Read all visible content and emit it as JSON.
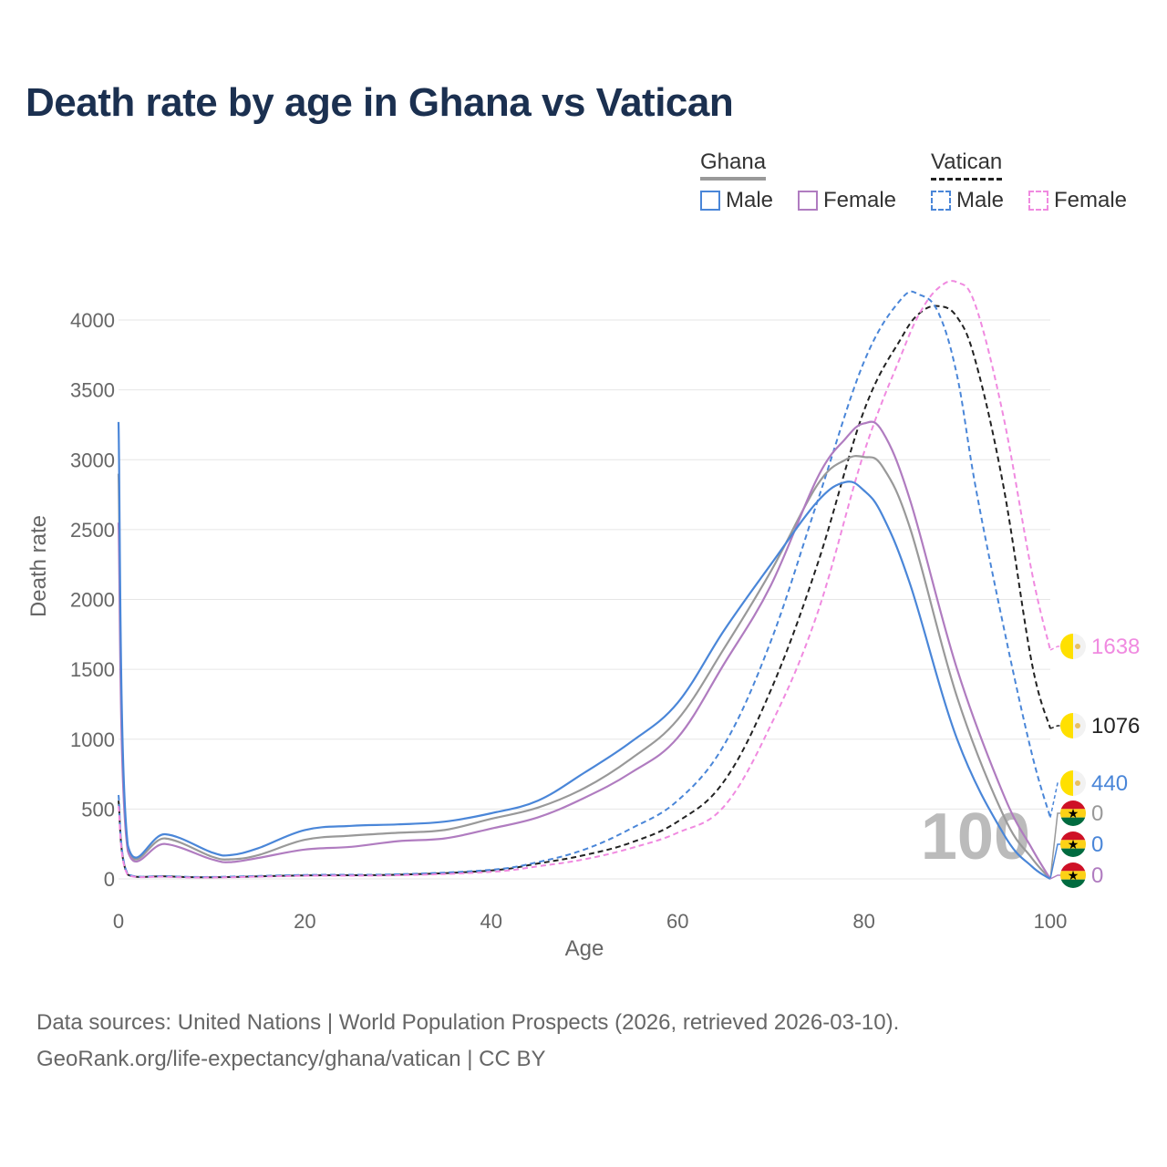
{
  "title": "Death rate by age in Ghana vs Vatican",
  "legend": {
    "groups": [
      {
        "title": "Ghana",
        "entries": [
          "Male",
          "Female"
        ]
      },
      {
        "title": "Vatican",
        "entries": [
          "Male",
          "Female"
        ]
      }
    ]
  },
  "colors": {
    "ghana_total": "#999999",
    "ghana_male": "#4a86d8",
    "ghana_female": "#b07cc0",
    "vatican_total": "#222222",
    "vatican_male": "#4a86d8",
    "vatican_female": "#f08ae0",
    "grid": "#e6e6e6",
    "axis_text": "#666666"
  },
  "chart_data": {
    "type": "line",
    "title": "Death rate by age in Ghana vs Vatican",
    "xlabel": "Age",
    "ylabel": "Death rate",
    "xlim": [
      0,
      100
    ],
    "ylim": [
      0,
      4300
    ],
    "x_ticks": [
      0,
      20,
      40,
      60,
      80,
      100
    ],
    "y_ticks": [
      0,
      500,
      1000,
      1500,
      2000,
      2500,
      3000,
      3500,
      4000
    ],
    "watermark": "100",
    "series": [
      {
        "name": "Ghana Total",
        "country": "Ghana",
        "sex": "Total",
        "style": "solid",
        "color": "#999999",
        "x": [
          0,
          1,
          5,
          10,
          12,
          15,
          20,
          25,
          30,
          35,
          40,
          45,
          50,
          55,
          60,
          65,
          70,
          75,
          78,
          80,
          82,
          85,
          90,
          95,
          98,
          100
        ],
        "y": [
          2900,
          220,
          290,
          160,
          140,
          170,
          280,
          310,
          330,
          350,
          430,
          510,
          650,
          860,
          1140,
          1650,
          2200,
          2820,
          3000,
          3020,
          2950,
          2500,
          1300,
          450,
          150,
          0
        ]
      },
      {
        "name": "Ghana Male",
        "country": "Ghana",
        "sex": "Male",
        "style": "solid",
        "color": "#4a86d8",
        "x": [
          0,
          1,
          5,
          10,
          12,
          15,
          20,
          25,
          30,
          35,
          40,
          45,
          50,
          55,
          60,
          65,
          70,
          75,
          78,
          80,
          82,
          85,
          90,
          95,
          98,
          100
        ],
        "y": [
          3270,
          240,
          320,
          190,
          170,
          220,
          350,
          380,
          390,
          410,
          470,
          560,
          760,
          980,
          1260,
          1780,
          2250,
          2700,
          2840,
          2780,
          2600,
          2100,
          1000,
          320,
          90,
          0
        ]
      },
      {
        "name": "Ghana Female",
        "country": "Ghana",
        "sex": "Female",
        "style": "solid",
        "color": "#b07cc0",
        "x": [
          0,
          1,
          5,
          10,
          12,
          15,
          20,
          25,
          30,
          35,
          40,
          45,
          50,
          55,
          60,
          65,
          70,
          75,
          78,
          80,
          82,
          85,
          90,
          95,
          98,
          100
        ],
        "y": [
          2550,
          200,
          250,
          140,
          120,
          150,
          210,
          230,
          270,
          290,
          360,
          440,
          580,
          760,
          1010,
          1540,
          2100,
          2870,
          3150,
          3260,
          3200,
          2700,
          1500,
          600,
          220,
          0
        ]
      },
      {
        "name": "Vatican Total",
        "country": "Vatican",
        "sex": "Total",
        "style": "dashed",
        "color": "#222222",
        "x": [
          0,
          1,
          5,
          10,
          20,
          30,
          40,
          45,
          50,
          55,
          60,
          65,
          70,
          75,
          80,
          84,
          86,
          88,
          90,
          92,
          95,
          98,
          100
        ],
        "y": [
          560,
          30,
          18,
          12,
          25,
          30,
          60,
          110,
          170,
          260,
          410,
          700,
          1350,
          2250,
          3350,
          3870,
          4050,
          4100,
          4020,
          3700,
          2800,
          1550,
          1076
        ]
      },
      {
        "name": "Vatican Male",
        "country": "Vatican",
        "sex": "Male",
        "style": "dashed",
        "color": "#4a86d8",
        "x": [
          0,
          1,
          5,
          10,
          20,
          30,
          40,
          45,
          50,
          55,
          60,
          65,
          70,
          75,
          80,
          84,
          86,
          88,
          90,
          92,
          95,
          98,
          100
        ],
        "y": [
          600,
          35,
          20,
          14,
          28,
          33,
          65,
          120,
          210,
          360,
          560,
          960,
          1700,
          2700,
          3700,
          4150,
          4180,
          4050,
          3600,
          2800,
          1800,
          900,
          440
        ]
      },
      {
        "name": "Vatican Female",
        "country": "Vatican",
        "sex": "Female",
        "style": "dashed",
        "color": "#f08ae0",
        "x": [
          0,
          1,
          5,
          10,
          20,
          30,
          40,
          45,
          50,
          55,
          60,
          65,
          70,
          75,
          80,
          84,
          86,
          88,
          90,
          92,
          95,
          98,
          100
        ],
        "y": [
          520,
          28,
          15,
          10,
          22,
          26,
          50,
          90,
          140,
          220,
          330,
          520,
          1100,
          1900,
          3050,
          3750,
          4050,
          4230,
          4270,
          4100,
          3300,
          2200,
          1638
        ]
      }
    ],
    "end_labels": [
      {
        "country": "Vatican",
        "series": "Vatican Female",
        "value": "1638",
        "color": "#f08ae0"
      },
      {
        "country": "Vatican",
        "series": "Vatican Total",
        "value": "1076",
        "color": "#222222"
      },
      {
        "country": "Vatican",
        "series": "Vatican Male",
        "value": "440",
        "color": "#4a86d8"
      },
      {
        "country": "Ghana",
        "series": "Ghana Total",
        "value": "0",
        "color": "#999999"
      },
      {
        "country": "Ghana",
        "series": "Ghana Male",
        "value": "0",
        "color": "#4a86d8"
      },
      {
        "country": "Ghana",
        "series": "Ghana Female",
        "value": "0",
        "color": "#b07cc0"
      }
    ]
  },
  "footer": {
    "line1": "Data sources: United Nations | World Population Prospects (2026, retrieved 2026-03-10).",
    "line2": "GeoRank.org/life-expectancy/ghana/vatican | CC BY"
  }
}
